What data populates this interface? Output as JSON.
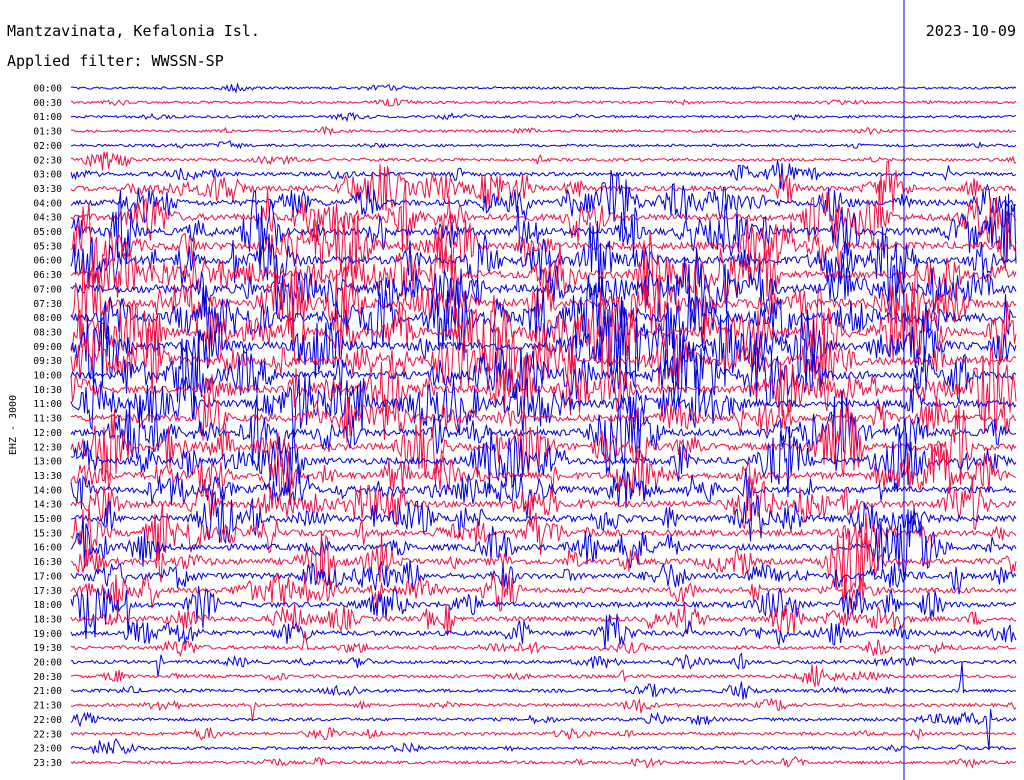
{
  "header": {
    "station": "Mantzavinata, Kefalonia Isl.",
    "filter": "Applied filter: WWSSN-SP",
    "date": "2023-10-09"
  },
  "channel_label": "EHZ - 3000",
  "colors": {
    "trace_a": "#0000dd",
    "trace_b": "#ee1144",
    "background": "#ffffff"
  },
  "chart_data": {
    "type": "line",
    "title": "",
    "row_labels": [
      "00:00",
      "00:30",
      "01:00",
      "01:30",
      "02:00",
      "02:30",
      "03:00",
      "03:30",
      "04:00",
      "04:30",
      "05:00",
      "05:30",
      "06:00",
      "06:30",
      "07:00",
      "07:30",
      "08:00",
      "08:30",
      "09:00",
      "09:30",
      "10:00",
      "10:30",
      "11:00",
      "11:30",
      "12:00",
      "12:30",
      "13:00",
      "13:30",
      "14:00",
      "14:30",
      "15:00",
      "15:30",
      "16:00",
      "16:30",
      "17:00",
      "17:30",
      "18:00",
      "18:30",
      "19:00",
      "19:30",
      "20:00",
      "20:30",
      "21:00",
      "21:30",
      "22:00",
      "22:30",
      "23:00",
      "23:30"
    ],
    "row_activity": [
      0.5,
      0.6,
      0.6,
      0.7,
      0.7,
      1.0,
      1.8,
      2.8,
      3.6,
      4.2,
      4.8,
      5.0,
      5.2,
      5.4,
      5.8,
      5.8,
      6.0,
      6.0,
      5.8,
      5.6,
      5.2,
      5.0,
      4.8,
      4.6,
      4.6,
      4.4,
      4.4,
      4.2,
      4.0,
      4.0,
      3.8,
      3.8,
      3.8,
      3.6,
      3.4,
      3.2,
      3.0,
      2.8,
      2.6,
      1.6,
      1.4,
      1.3,
      1.3,
      1.2,
      1.2,
      1.1,
      1.0,
      1.0
    ],
    "grid": false,
    "legend": "none"
  }
}
